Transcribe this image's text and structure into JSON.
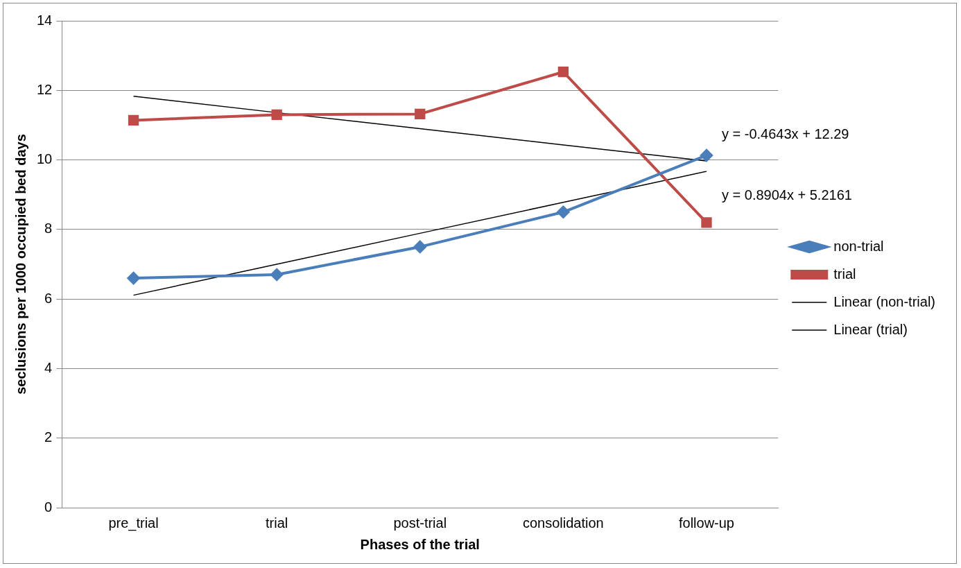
{
  "chart_data": {
    "type": "line",
    "xlabel": "Phases of the trial",
    "ylabel": "seclusions per 1000 occupied bed days",
    "categories": [
      "pre_trial",
      "trial",
      "post-trial",
      "consolidation",
      "follow-up"
    ],
    "series": [
      {
        "name": "non-trial",
        "color": "#4a7ebb",
        "marker": "diamond",
        "values": [
          6.6,
          6.7,
          7.5,
          8.5,
          10.13
        ]
      },
      {
        "name": "trial",
        "color": "#be4b48",
        "marker": "square",
        "values": [
          11.14,
          11.3,
          11.32,
          12.53,
          8.2
        ]
      },
      {
        "name": "Linear (non-trial)",
        "color": "#000000",
        "marker": "none",
        "values": [
          6.11,
          7.0,
          7.89,
          8.78,
          9.67
        ]
      },
      {
        "name": "Linear (trial)",
        "color": "#000000",
        "marker": "none",
        "values": [
          11.83,
          11.36,
          10.9,
          10.43,
          9.97
        ]
      }
    ],
    "annotations": [
      "y = -0.4643x + 12.29",
      "y = 0.8904x + 5.2161"
    ],
    "ylim": [
      0,
      14
    ],
    "yticks": [
      0,
      2,
      4,
      6,
      8,
      10,
      12,
      14
    ],
    "grid": "y",
    "legend": "right",
    "line_style": "solid"
  }
}
